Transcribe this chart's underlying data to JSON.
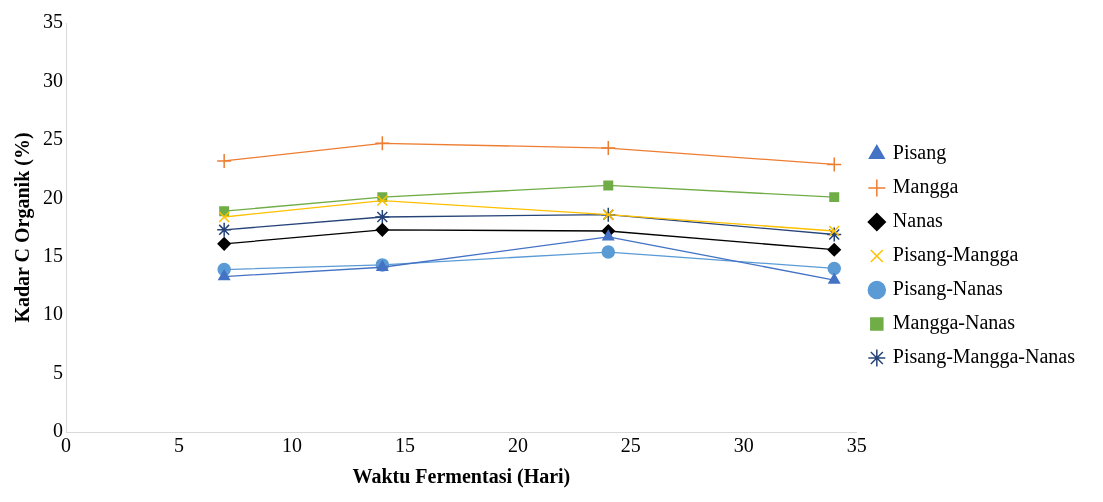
{
  "chart_data": {
    "type": "line",
    "xlabel": "Waktu Fermentasi (Hari)",
    "ylabel": "Kadar C Organik (%)",
    "x": [
      7,
      14,
      24,
      34
    ],
    "xlim": [
      0,
      35
    ],
    "xticks": [
      0,
      5,
      10,
      15,
      20,
      25,
      30,
      35
    ],
    "ylim": [
      0,
      35
    ],
    "yticks": [
      0,
      5,
      10,
      15,
      20,
      25,
      30,
      35
    ],
    "grid": false,
    "legend": "right",
    "line_style": "solid",
    "series": [
      {
        "name": "Pisang",
        "color": "#4472c4",
        "marker": "triangle",
        "values": [
          13.3,
          14.1,
          16.7,
          13.0
        ]
      },
      {
        "name": "Mangga",
        "color": "#ed7d31",
        "marker": "cross",
        "values": [
          23.2,
          24.7,
          24.3,
          22.9
        ]
      },
      {
        "name": "Nanas",
        "color": "#000000",
        "marker": "diamond",
        "values": [
          16.1,
          17.3,
          17.2,
          15.6
        ]
      },
      {
        "name": "Pisang-Mangga",
        "color": "#ffc000",
        "marker": "cross",
        "values": [
          18.4,
          19.8,
          18.6,
          17.2
        ]
      },
      {
        "name": "Pisang-Nanas",
        "color": "#5b9bd5",
        "marker": "circle",
        "values": [
          13.9,
          14.3,
          15.4,
          14.0
        ]
      },
      {
        "name": "Mangga-Nanas",
        "color": "#70ad47",
        "marker": "square",
        "values": [
          18.9,
          20.1,
          21.1,
          20.1
        ]
      },
      {
        "name": "Pisang-Mangga-Nanas",
        "color": "#264478",
        "marker": "cross",
        "values": [
          17.3,
          18.4,
          18.6,
          16.9
        ]
      }
    ]
  }
}
